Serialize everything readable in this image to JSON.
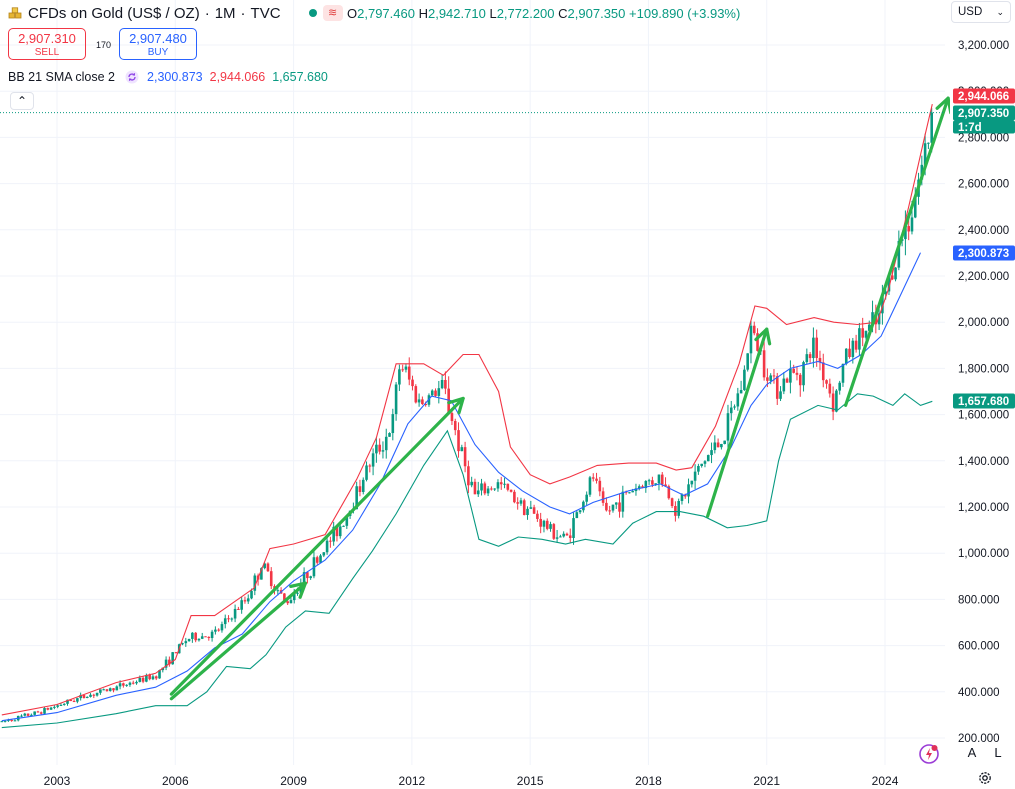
{
  "header": {
    "symbol_title": "CFDs on Gold (US$ / OZ)",
    "interval": "1M",
    "exchange": "TVC",
    "ohlc": {
      "o_label": "O",
      "o_value": "2,797.460",
      "h_label": "H",
      "h_value": "2,942.710",
      "l_label": "L",
      "l_value": "2,772.200",
      "c_label": "C",
      "c_value": "2,907.350",
      "change": "+109.890 (+3.93%)"
    },
    "sell": {
      "price": "2,907.310",
      "label": "SELL"
    },
    "buy": {
      "price": "2,907.480",
      "label": "BUY"
    },
    "spread": "170",
    "indicator": {
      "name": "BB 21 SMA close 2",
      "basis": "2,300.873",
      "upper": "2,944.066",
      "lower": "1,657.680"
    },
    "collapse_icon": "chevron-up-icon"
  },
  "currency_select": {
    "value": "USD",
    "icon": "chevron-down-icon"
  },
  "axis_buttons": {
    "auto": "A",
    "log": "L"
  },
  "colors": {
    "up": "#089981",
    "down": "#f23645",
    "basis": "#2962ff",
    "upper": "#f23645",
    "lower": "#089981",
    "arrows": "#2db34a"
  },
  "chart_data": {
    "type": "candlestick",
    "title": "CFDs on Gold (US$ / OZ) · 1M · TVC",
    "ylim": [
      160,
      3300
    ],
    "y_ticks": [
      200,
      400,
      600,
      800,
      1000,
      1200,
      1400,
      1600,
      1800,
      2000,
      2200,
      2400,
      2600,
      2800,
      3000,
      3200
    ],
    "y_tick_labels": [
      "200.000",
      "400.000",
      "600.000",
      "800.000",
      "1,000.000",
      "1,200.000",
      "1,400.000",
      "1,600.000",
      "1,800.000",
      "2,000.000",
      "2,200.000",
      "2,400.000",
      "2,600.000",
      "2,800.000",
      "3,000.000",
      "3,200.000"
    ],
    "x_ticks": [
      2003,
      2006,
      2009,
      2012,
      2015,
      2018,
      2021,
      2024
    ],
    "x_tick_labels": [
      "2003",
      "2006",
      "2009",
      "2012",
      "2015",
      "2018",
      "2021",
      "2024"
    ],
    "xlim": [
      2001.6,
      2025.9
    ],
    "price_path": [
      [
        2001.6,
        270
      ],
      [
        2002.5,
        310
      ],
      [
        2003.5,
        370
      ],
      [
        2004.5,
        420
      ],
      [
        2005.5,
        470
      ],
      [
        2006.3,
        630
      ],
      [
        2007.0,
        650
      ],
      [
        2007.8,
        800
      ],
      [
        2008.2,
        950
      ],
      [
        2008.8,
        780
      ],
      [
        2009.5,
        950
      ],
      [
        2010.3,
        1150
      ],
      [
        2010.9,
        1380
      ],
      [
        2011.5,
        1550
      ],
      [
        2011.7,
        1830
      ],
      [
        2012.2,
        1650
      ],
      [
        2012.8,
        1720
      ],
      [
        2013.3,
        1400
      ],
      [
        2013.6,
        1250
      ],
      [
        2014.2,
        1300
      ],
      [
        2014.9,
        1200
      ],
      [
        2015.5,
        1100
      ],
      [
        2015.9,
        1060
      ],
      [
        2016.6,
        1330
      ],
      [
        2016.9,
        1170
      ],
      [
        2017.6,
        1280
      ],
      [
        2018.3,
        1330
      ],
      [
        2018.7,
        1190
      ],
      [
        2019.4,
        1400
      ],
      [
        2019.9,
        1500
      ],
      [
        2020.4,
        1750
      ],
      [
        2020.6,
        1970
      ],
      [
        2021.2,
        1720
      ],
      [
        2021.9,
        1800
      ],
      [
        2022.2,
        1900
      ],
      [
        2022.7,
        1650
      ],
      [
        2023.0,
        1850
      ],
      [
        2023.4,
        1950
      ],
      [
        2023.8,
        1990
      ],
      [
        2024.2,
        2250
      ],
      [
        2024.6,
        2450
      ],
      [
        2024.9,
        2650
      ],
      [
        2025.1,
        2800
      ],
      [
        2025.2,
        2907.35
      ]
    ],
    "series": [
      {
        "name": "BB Upper",
        "values": [
          [
            2001.6,
            300
          ],
          [
            2003.0,
            345
          ],
          [
            2004.5,
            440
          ],
          [
            2005.5,
            480
          ],
          [
            2006.0,
            540
          ],
          [
            2006.4,
            730
          ],
          [
            2007.0,
            730
          ],
          [
            2008.0,
            850
          ],
          [
            2008.4,
            1020
          ],
          [
            2009.0,
            1040
          ],
          [
            2009.8,
            1080
          ],
          [
            2010.6,
            1320
          ],
          [
            2011.1,
            1500
          ],
          [
            2011.6,
            1820
          ],
          [
            2012.3,
            1820
          ],
          [
            2012.8,
            1770
          ],
          [
            2013.3,
            1860
          ],
          [
            2013.7,
            1860
          ],
          [
            2014.2,
            1700
          ],
          [
            2014.5,
            1460
          ],
          [
            2015.0,
            1340
          ],
          [
            2015.5,
            1300
          ],
          [
            2016.0,
            1330
          ],
          [
            2016.7,
            1380
          ],
          [
            2017.5,
            1390
          ],
          [
            2018.2,
            1390
          ],
          [
            2018.7,
            1360
          ],
          [
            2019.1,
            1370
          ],
          [
            2019.7,
            1550
          ],
          [
            2020.3,
            1820
          ],
          [
            2020.7,
            2070
          ],
          [
            2021.0,
            2060
          ],
          [
            2021.5,
            1990
          ],
          [
            2022.2,
            2020
          ],
          [
            2022.7,
            2000
          ],
          [
            2023.3,
            1990
          ],
          [
            2023.8,
            2000
          ],
          [
            2024.1,
            2150
          ],
          [
            2024.6,
            2500
          ],
          [
            2025.0,
            2800
          ],
          [
            2025.2,
            2944.066
          ]
        ]
      },
      {
        "name": "BB Basis",
        "values": [
          [
            2001.6,
            275
          ],
          [
            2003.0,
            310
          ],
          [
            2004.5,
            385
          ],
          [
            2005.5,
            420
          ],
          [
            2006.3,
            490
          ],
          [
            2007.0,
            590
          ],
          [
            2007.7,
            650
          ],
          [
            2008.4,
            790
          ],
          [
            2009.0,
            880
          ],
          [
            2009.8,
            970
          ],
          [
            2010.5,
            1100
          ],
          [
            2011.2,
            1300
          ],
          [
            2011.9,
            1560
          ],
          [
            2012.5,
            1680
          ],
          [
            2013.0,
            1660
          ],
          [
            2013.6,
            1470
          ],
          [
            2014.2,
            1350
          ],
          [
            2014.8,
            1270
          ],
          [
            2015.5,
            1200
          ],
          [
            2016.0,
            1170
          ],
          [
            2016.6,
            1220
          ],
          [
            2017.5,
            1270
          ],
          [
            2018.3,
            1300
          ],
          [
            2018.9,
            1250
          ],
          [
            2019.5,
            1300
          ],
          [
            2020.1,
            1460
          ],
          [
            2020.6,
            1640
          ],
          [
            2021.0,
            1730
          ],
          [
            2021.6,
            1800
          ],
          [
            2022.3,
            1830
          ],
          [
            2022.8,
            1800
          ],
          [
            2023.4,
            1860
          ],
          [
            2023.9,
            1940
          ],
          [
            2024.4,
            2120
          ],
          [
            2024.9,
            2300.873
          ]
        ]
      },
      {
        "name": "BB Lower",
        "values": [
          [
            2001.6,
            245
          ],
          [
            2003.0,
            265
          ],
          [
            2004.5,
            305
          ],
          [
            2005.5,
            340
          ],
          [
            2006.3,
            340
          ],
          [
            2006.8,
            400
          ],
          [
            2007.3,
            510
          ],
          [
            2007.9,
            500
          ],
          [
            2008.3,
            560
          ],
          [
            2008.8,
            680
          ],
          [
            2009.3,
            750
          ],
          [
            2009.9,
            740
          ],
          [
            2010.5,
            890
          ],
          [
            2011.0,
            1010
          ],
          [
            2011.6,
            1170
          ],
          [
            2012.3,
            1380
          ],
          [
            2012.9,
            1530
          ],
          [
            2013.3,
            1340
          ],
          [
            2013.7,
            1060
          ],
          [
            2014.2,
            1030
          ],
          [
            2014.7,
            1070
          ],
          [
            2015.3,
            1060
          ],
          [
            2015.9,
            1040
          ],
          [
            2016.4,
            1060
          ],
          [
            2017.1,
            1040
          ],
          [
            2017.6,
            1130
          ],
          [
            2018.2,
            1180
          ],
          [
            2018.8,
            1180
          ],
          [
            2019.4,
            1160
          ],
          [
            2020.0,
            1110
          ],
          [
            2020.5,
            1120
          ],
          [
            2021.0,
            1140
          ],
          [
            2021.3,
            1400
          ],
          [
            2021.6,
            1580
          ],
          [
            2022.3,
            1640
          ],
          [
            2022.8,
            1620
          ],
          [
            2023.3,
            1690
          ],
          [
            2023.7,
            1680
          ],
          [
            2024.2,
            1640
          ],
          [
            2024.5,
            1690
          ],
          [
            2024.9,
            1640
          ],
          [
            2025.2,
            1657.68
          ]
        ]
      }
    ],
    "annotations": [
      {
        "type": "arrow",
        "from": [
          2005.9,
          370
        ],
        "to": [
          2009.3,
          870
        ]
      },
      {
        "type": "arrow",
        "from": [
          2005.9,
          390
        ],
        "to": [
          2013.3,
          1670
        ]
      },
      {
        "type": "arrow",
        "from": [
          2019.5,
          1160
        ],
        "to": [
          2021.0,
          1970
        ]
      },
      {
        "type": "arrow",
        "from": [
          2023.0,
          1640
        ],
        "to": [
          2025.6,
          2970
        ]
      }
    ],
    "price_tags": [
      {
        "label": "2,944.066",
        "value": 2944.066,
        "color": "#f23645"
      },
      {
        "label": "2,907.350",
        "value": 2907.35,
        "color": "#089981"
      },
      {
        "label": "1:7d",
        "value": 2860,
        "color": "#089981"
      },
      {
        "label": "2,300.873",
        "value": 2300.873,
        "color": "#2962ff"
      },
      {
        "label": "1,657.680",
        "value": 1657.68,
        "color": "#089981"
      }
    ],
    "grid": true
  }
}
